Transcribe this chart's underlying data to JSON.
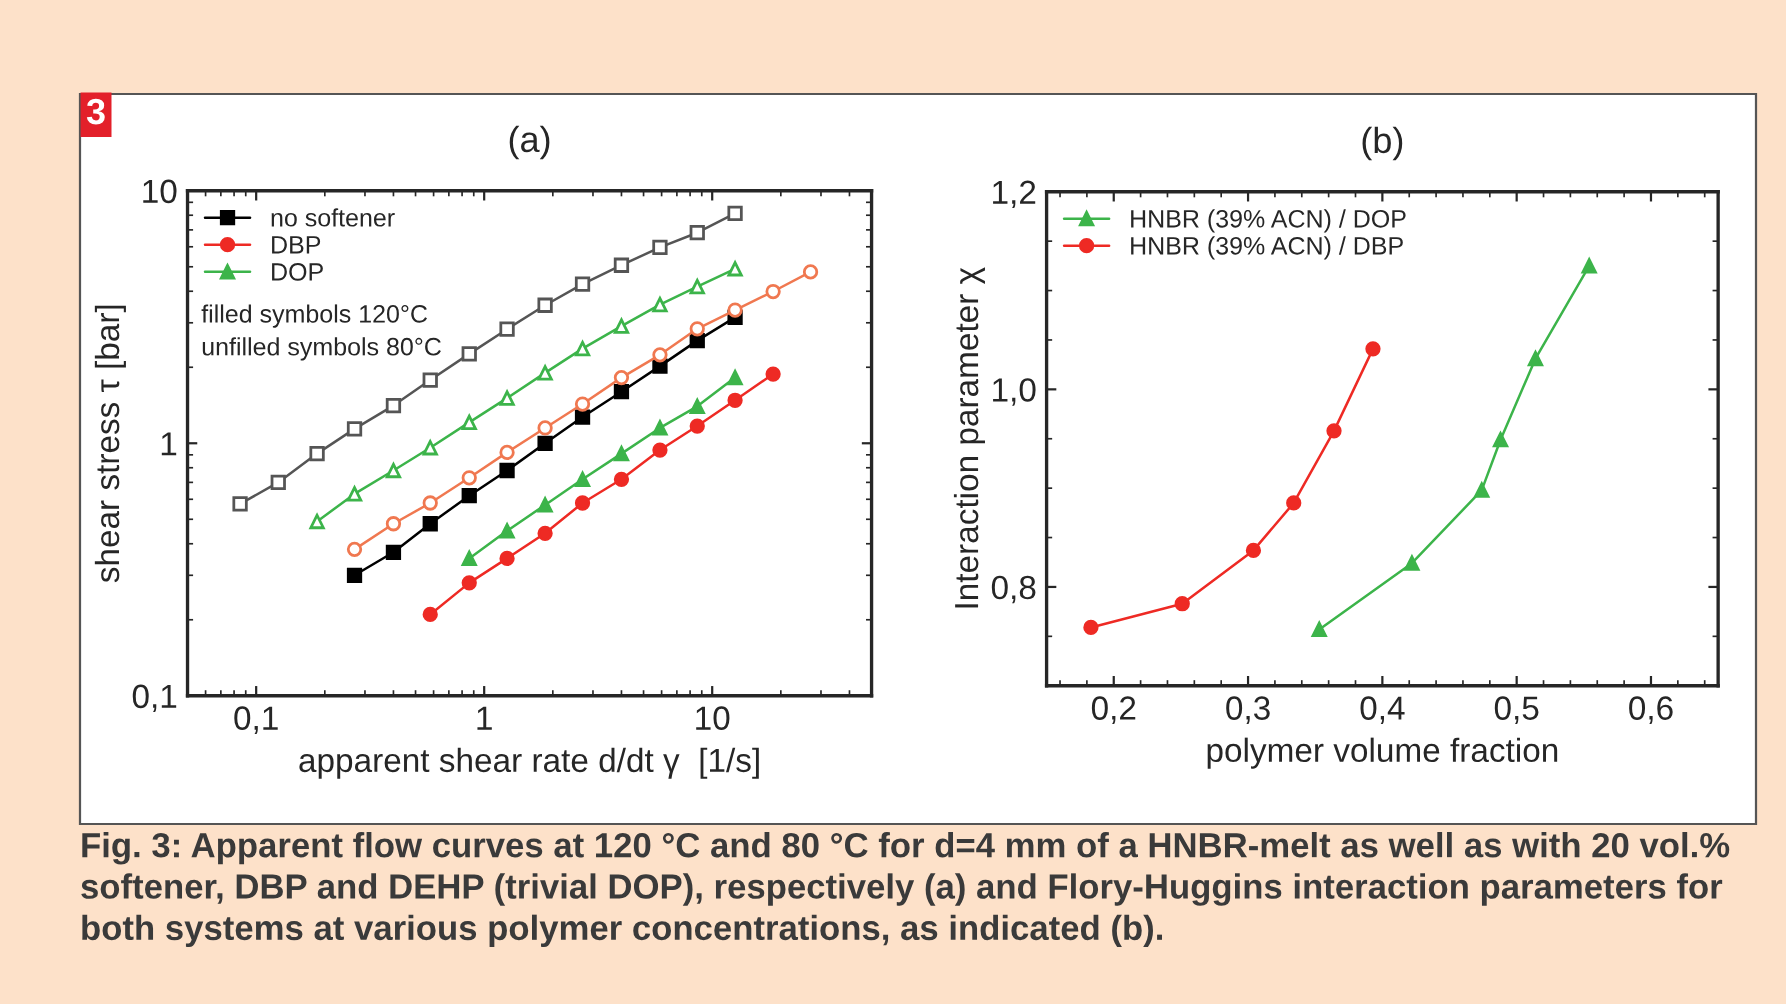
{
  "chart_data": [
    {
      "type": "line",
      "title": "(a)",
      "xlabel": "apparent shear rate d/dt γ  [1/s]",
      "ylabel": "shear stress τ [bar]",
      "log": "xy",
      "xlim": [
        0.05,
        50
      ],
      "ylim": [
        0.1,
        10
      ],
      "xticks": [
        {
          "value": 0.1,
          "label": "0,1"
        },
        1,
        10
      ],
      "yticks": [
        {
          "value": 0.1,
          "label": "0,1"
        },
        1,
        10
      ],
      "legend": "top left",
      "grid": false,
      "annotations": [
        "3",
        "filled symbols 120°C",
        "unfilled symbols 80°C",
        "Fig. 3: Apparent flow curves at 120 °C and 80 °C for d=4 mm of a HNBR-melt as well as with 20 vol.% softener, DBP and DEHP (trivial DOP), respectively (a) and Flory-Huggins interaction parameters for both systems at various polymer concentrations, as indicated (b)."
      ],
      "series": [
        {
          "name": "no softener",
          "color": "#000000",
          "marker": "square",
          "x": [
            0.27,
            0.4,
            0.58,
            0.86,
            1.26,
            1.85,
            2.7,
            4,
            5.9,
            8.6,
            12.6
          ],
          "values": [
            0.3,
            0.37,
            0.48,
            0.62,
            0.78,
            1.0,
            1.27,
            1.6,
            2.02,
            2.55,
            3.15
          ]
        },
        {
          "name": "DBP",
          "color": "#ee2a24",
          "marker": "circle",
          "x": [
            0.58,
            0.86,
            1.26,
            1.85,
            2.7,
            4,
            5.9,
            8.6,
            12.6,
            18.5
          ],
          "values": [
            0.21,
            0.28,
            0.35,
            0.44,
            0.58,
            0.72,
            0.94,
            1.17,
            1.48,
            1.88
          ]
        },
        {
          "name": "DOP",
          "color": "#3cb44a",
          "marker": "triangle",
          "x": [
            0.86,
            1.26,
            1.85,
            2.7,
            4,
            5.9,
            8.6,
            12.6
          ],
          "values": [
            0.35,
            0.45,
            0.57,
            0.72,
            0.91,
            1.15,
            1.4,
            1.82
          ]
        },
        {
          "color": "#555555",
          "marker": "square",
          "x": [
            0.085,
            0.125,
            0.185,
            0.27,
            0.4,
            0.58,
            0.86,
            1.26,
            1.85,
            2.7,
            4,
            5.9,
            8.6,
            12.6
          ],
          "values": [
            0.575,
            0.7,
            0.91,
            1.14,
            1.41,
            1.78,
            2.26,
            2.83,
            3.52,
            4.27,
            5.07,
            5.97,
            6.82,
            8.13
          ]
        },
        {
          "color": "#3cb44a",
          "marker": "triangle",
          "x": [
            0.185,
            0.27,
            0.4,
            0.58,
            0.86,
            1.26,
            1.85,
            2.7,
            4,
            5.9,
            8.6,
            12.6
          ],
          "values": [
            0.49,
            0.63,
            0.78,
            0.96,
            1.21,
            1.51,
            1.9,
            2.37,
            2.91,
            3.54,
            4.17,
            4.91
          ]
        },
        {
          "color": "#f07850",
          "marker": "circle",
          "x": [
            0.27,
            0.4,
            0.58,
            0.86,
            1.26,
            1.85,
            2.7,
            4,
            5.9,
            8.6,
            12.6,
            18.5,
            27
          ],
          "values": [
            0.38,
            0.48,
            0.58,
            0.73,
            0.92,
            1.15,
            1.43,
            1.82,
            2.24,
            2.84,
            3.37,
            3.99,
            4.77
          ]
        }
      ]
    },
    {
      "type": "line",
      "title": "(b)",
      "xlabel": "polymer volume fraction",
      "ylabel": "Interaction parameter χ",
      "xlim": [
        0.15,
        0.65
      ],
      "ylim": [
        0.7,
        1.2
      ],
      "xticks": [
        {
          "value": 0.2,
          "label": "0,2"
        },
        {
          "value": 0.3,
          "label": "0,3"
        },
        {
          "value": 0.4,
          "label": "0,4"
        },
        {
          "value": 0.5,
          "label": "0,5"
        },
        {
          "value": 0.6,
          "label": "0,6"
        }
      ],
      "yticks": [
        {
          "value": 0.8,
          "label": "0,8"
        },
        {
          "value": 1.0,
          "label": "1,0"
        },
        {
          "value": 1.2,
          "label": "1,2"
        }
      ],
      "legend": "top left",
      "grid": false,
      "series": [
        {
          "name": "HNBR (39% ACN) / DOP",
          "color": "#3cb44a",
          "marker": "triangle",
          "x": [
            0.353,
            0.422,
            0.474,
            0.488,
            0.514,
            0.554
          ],
          "values": [
            0.757,
            0.824,
            0.898,
            0.949,
            1.031,
            1.125
          ]
        },
        {
          "name": "HNBR (39% ACN) / DBP",
          "color": "#ee2a24",
          "marker": "circle",
          "x": [
            0.183,
            0.251,
            0.304,
            0.334,
            0.364,
            0.393
          ],
          "values": [
            0.759,
            0.783,
            0.837,
            0.885,
            0.958,
            1.041
          ]
        }
      ]
    }
  ]
}
